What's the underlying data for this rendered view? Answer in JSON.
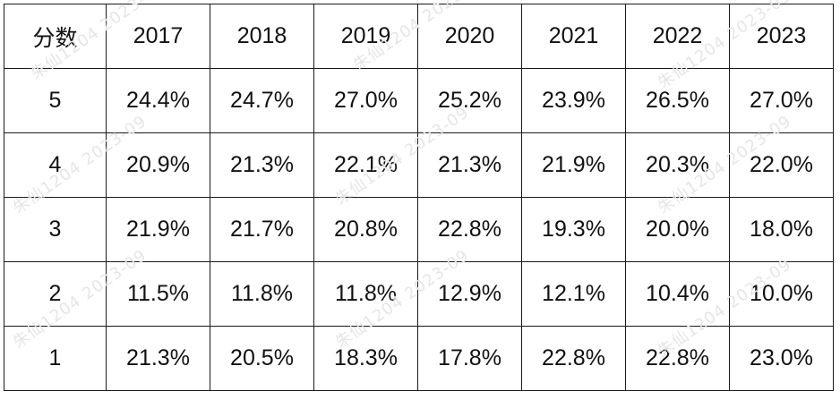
{
  "table": {
    "header": [
      "分数",
      "2017",
      "2018",
      "2019",
      "2020",
      "2021",
      "2022",
      "2023"
    ],
    "rows": [
      [
        "5",
        "24.4%",
        "24.7%",
        "27.0%",
        "25.2%",
        "23.9%",
        "26.5%",
        "27.0%"
      ],
      [
        "4",
        "20.9%",
        "21.3%",
        "22.1%",
        "21.3%",
        "21.9%",
        "20.3%",
        "22.0%"
      ],
      [
        "3",
        "21.9%",
        "21.7%",
        "20.8%",
        "22.8%",
        "19.3%",
        "20.0%",
        "18.0%"
      ],
      [
        "2",
        "11.5%",
        "11.8%",
        "11.8%",
        "12.9%",
        "12.1%",
        "10.4%",
        "10.0%"
      ],
      [
        "1",
        "21.3%",
        "20.5%",
        "18.3%",
        "17.8%",
        "22.8%",
        "22.8%",
        "23.0%"
      ]
    ]
  },
  "watermark": {
    "text": "朱仙1204 2023-09"
  }
}
